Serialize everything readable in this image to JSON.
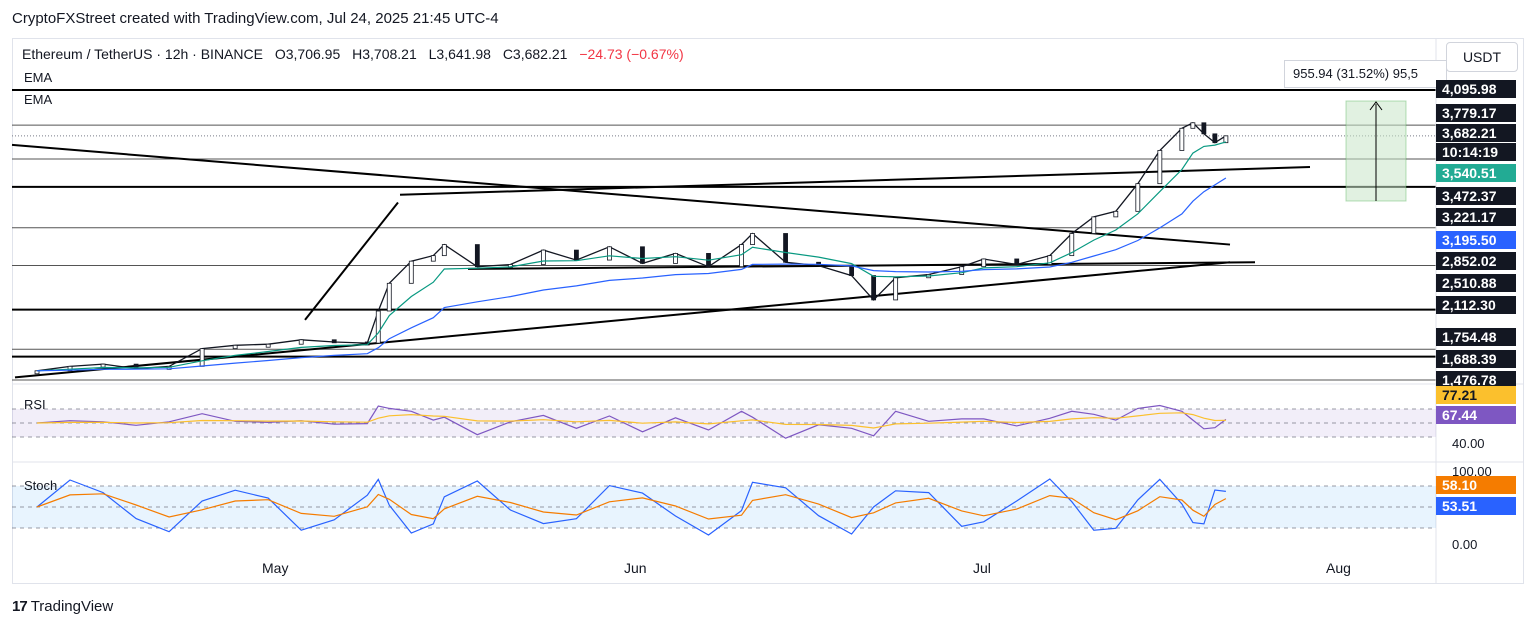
{
  "header": {
    "text": "CryptoFXStreet created with TradingView.com, Jul 24, 2025 21:45 UTC-4"
  },
  "legend": {
    "symbol": "Ethereum / TetherUS · 12h · BINANCE",
    "open": "O3,706.95",
    "high": "H3,708.21",
    "low": "L3,641.98",
    "close": "C3,682.21",
    "change": "−24.73 (−0.67%)",
    "ema1": "EMA",
    "ema2": "EMA",
    "change_color": "#f23645"
  },
  "currency": "USDT",
  "measure": {
    "text": "955.94 (31.52%) 95,5"
  },
  "price_labels": [
    {
      "text": "4,095.98",
      "bg": "#131722",
      "fg": "#ffffff"
    },
    {
      "text": "3,779.17",
      "bg": "#131722",
      "fg": "#ffffff"
    },
    {
      "text": "3,682.21",
      "bg": "#131722",
      "fg": "#ffffff"
    },
    {
      "text": "10:14:19",
      "bg": "#131722",
      "fg": "#ffffff"
    },
    {
      "text": "3,540.51",
      "bg": "#22ab94",
      "fg": "#ffffff"
    },
    {
      "text": "3,472.37",
      "bg": "#131722",
      "fg": "#ffffff"
    },
    {
      "text": "3,221.17",
      "bg": "#131722",
      "fg": "#ffffff"
    },
    {
      "text": "3,195.50",
      "bg": "#2962ff",
      "fg": "#ffffff"
    },
    {
      "text": "2,852.02",
      "bg": "#131722",
      "fg": "#ffffff"
    },
    {
      "text": "2,510.88",
      "bg": "#131722",
      "fg": "#ffffff"
    },
    {
      "text": "2,112.30",
      "bg": "#131722",
      "fg": "#ffffff"
    },
    {
      "text": "1,754.48",
      "bg": "#131722",
      "fg": "#ffffff"
    },
    {
      "text": "1,688.39",
      "bg": "#131722",
      "fg": "#ffffff"
    },
    {
      "text": "1,476.78",
      "bg": "#131722",
      "fg": "#ffffff"
    }
  ],
  "rsi": {
    "label": "RSI",
    "value_label": "77.21",
    "value_color": "#fbc02d",
    "ma_label": "67.44",
    "ma_color": "#7e57c2",
    "axis_label": "40.00",
    "upper_band": 70,
    "lower_band": 30
  },
  "stoch": {
    "label": "Stoch",
    "axis_top": "100.00",
    "axis_bottom": "0.00",
    "k_label": "58.10",
    "k_color": "#f57c00",
    "d_label": "53.51",
    "d_color": "#2962ff",
    "upper_band": 80,
    "lower_band": 20
  },
  "x_axis": [
    "May",
    "Jun",
    "Jul",
    "Aug"
  ],
  "footer": {
    "brand": "TradingView"
  },
  "chart_data": {
    "type": "line",
    "title": "Ethereum / TetherUS · 12h · BINANCE",
    "series": [
      {
        "name": "ETHUSDT",
        "points": [
          [
            "Apr 07",
            1560
          ],
          [
            "Apr 10",
            1600
          ],
          [
            "Apr 13",
            1620
          ],
          [
            "Apr 16",
            1580
          ],
          [
            "Apr 19",
            1600
          ],
          [
            "Apr 22",
            1760
          ],
          [
            "Apr 25",
            1790
          ],
          [
            "Apr 28",
            1800
          ],
          [
            "May 01",
            1840
          ],
          [
            "May 04",
            1820
          ],
          [
            "May 07",
            1810
          ],
          [
            "May 08",
            2100
          ],
          [
            "May 09",
            2350
          ],
          [
            "May 11",
            2550
          ],
          [
            "May 13",
            2600
          ],
          [
            "May 14",
            2700
          ],
          [
            "May 17",
            2500
          ],
          [
            "May 20",
            2520
          ],
          [
            "May 23",
            2650
          ],
          [
            "May 26",
            2560
          ],
          [
            "May 29",
            2680
          ],
          [
            "Jun 01",
            2530
          ],
          [
            "Jun 04",
            2620
          ],
          [
            "Jun 07",
            2500
          ],
          [
            "Jun 10",
            2700
          ],
          [
            "Jun 11",
            2800
          ],
          [
            "Jun 14",
            2540
          ],
          [
            "Jun 17",
            2510
          ],
          [
            "Jun 20",
            2420
          ],
          [
            "Jun 22",
            2200
          ],
          [
            "Jun 24",
            2400
          ],
          [
            "Jun 27",
            2430
          ],
          [
            "Jun 30",
            2500
          ],
          [
            "Jul 02",
            2570
          ],
          [
            "Jul 05",
            2520
          ],
          [
            "Jul 08",
            2600
          ],
          [
            "Jul 10",
            2800
          ],
          [
            "Jul 12",
            2950
          ],
          [
            "Jul 14",
            3000
          ],
          [
            "Jul 16",
            3250
          ],
          [
            "Jul 18",
            3550
          ],
          [
            "Jul 20",
            3750
          ],
          [
            "Jul 21",
            3800
          ],
          [
            "Jul 22",
            3700
          ],
          [
            "Jul 23",
            3620
          ],
          [
            "Jul 24",
            3682
          ]
        ]
      }
    ],
    "ema_values": {
      "fast": 3540.51,
      "slow": 3195.5
    },
    "levels": [
      4095.98,
      3779.17,
      3472.37,
      3221.17,
      2852.02,
      2510.88,
      2112.3,
      1754.48,
      1688.39,
      1476.78
    ],
    "ylim": [
      1476.78,
      4095.98
    ],
    "grid": false
  }
}
